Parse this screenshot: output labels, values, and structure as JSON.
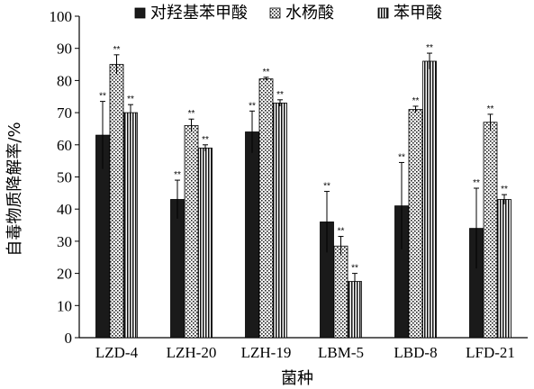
{
  "chart_data": {
    "type": "bar",
    "categories": [
      "LZD-4",
      "LZH-20",
      "LZH-19",
      "LBM-5",
      "LBD-8",
      "LFD-21"
    ],
    "series": [
      {
        "name": "对羟基苯甲酸",
        "values": [
          63,
          43,
          64,
          36,
          41,
          34
        ],
        "errors": [
          10.5,
          6,
          6.5,
          9.5,
          13.5,
          12.5
        ],
        "pattern": "solid"
      },
      {
        "name": "水杨酸",
        "values": [
          85,
          66,
          80.5,
          28.5,
          71,
          67
        ],
        "errors": [
          3,
          2,
          0.5,
          3,
          1,
          2.5
        ],
        "pattern": "dotted"
      },
      {
        "name": "苯甲酸",
        "values": [
          70,
          59,
          73,
          17.5,
          86,
          43
        ],
        "errors": [
          2.5,
          1,
          1,
          2.5,
          2.5,
          1.5
        ],
        "pattern": "vertical-stripes"
      }
    ],
    "significance_label": "**",
    "xlabel": "菌种",
    "ylabel": "自毒物质降解率/%",
    "ylim": [
      0,
      100
    ],
    "yticks": [
      0,
      10,
      20,
      30,
      40,
      50,
      60,
      70,
      80,
      90,
      100
    ],
    "grid": false,
    "legend_position": "top"
  }
}
